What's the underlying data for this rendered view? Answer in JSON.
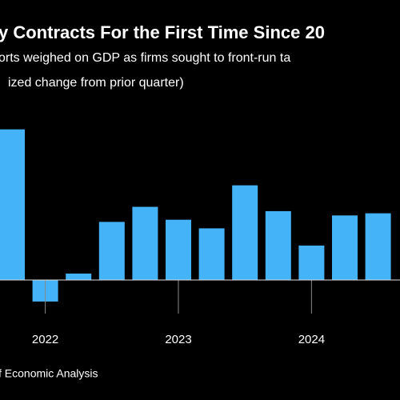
{
  "chart_data": {
    "type": "bar",
    "title": "y Contracts For the First Time Since 20",
    "subtitle": "orts weighed on GDP as firms sought to front-run ta",
    "axis_note": "ized change from prior quarter)",
    "source": "f Economic Analysis",
    "categories": [
      null,
      "2022",
      null,
      null,
      null,
      "2023",
      null,
      null,
      null,
      "2024",
      null,
      null
    ],
    "values": [
      7.0,
      -1.0,
      0.3,
      2.7,
      3.4,
      2.8,
      2.4,
      4.4,
      3.2,
      1.6,
      3.0,
      3.1
    ],
    "color": "#45b3f7"
  }
}
